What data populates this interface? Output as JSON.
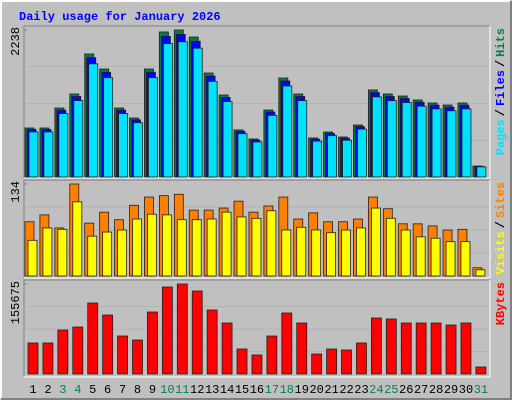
{
  "title": "Daily usage for January 2026",
  "legend_separator": "/",
  "chart_data": [
    {
      "type": "bar",
      "ylim": [
        0,
        2238
      ],
      "yticks": [
        2238
      ],
      "series": [
        {
          "name": "Hits",
          "color": "#008040",
          "values": [
            746,
            746,
            1050,
            1264,
            1873,
            1644,
            1050,
            898,
            1644,
            2208,
            2238,
            2131,
            1583,
            1248,
            716,
            579,
            1020,
            1507,
            1264,
            594,
            685,
            609,
            792,
            1325,
            1264,
            1233,
            1172,
            1127,
            1096,
            1127,
            167
          ]
        },
        {
          "name": "Files",
          "color": "#0000ff",
          "values": [
            724,
            724,
            1019,
            1226,
            1817,
            1595,
            1019,
            871,
            1595,
            2142,
            2171,
            2067,
            1536,
            1211,
            695,
            562,
            989,
            1462,
            1226,
            576,
            664,
            591,
            768,
            1285,
            1226,
            1196,
            1137,
            1093,
            1063,
            1093,
            162
          ]
        },
        {
          "name": "Pages",
          "color": "#00e0ff",
          "values": [
            686,
            686,
            966,
            1163,
            1723,
            1512,
            966,
            826,
            1512,
            2031,
            2059,
            1961,
            1456,
            1148,
            659,
            533,
            938,
            1386,
            1163,
            546,
            630,
            560,
            729,
            1219,
            1163,
            1134,
            1078,
            1037,
            1008,
            1037,
            154
          ]
        }
      ]
    },
    {
      "type": "bar",
      "ylim": [
        0,
        134
      ],
      "yticks": [
        134
      ],
      "series": [
        {
          "name": "Sites",
          "color": "#ff8000",
          "values": [
            79,
            89,
            70,
            134,
            77,
            93,
            82,
            103,
            115,
            117,
            119,
            96,
            96,
            99,
            109,
            93,
            102,
            115,
            83,
            92,
            79,
            79,
            83,
            115,
            98,
            76,
            76,
            73,
            67,
            68,
            12
          ]
        },
        {
          "name": "Visits",
          "color": "#ffff00",
          "values": [
            52,
            70,
            68,
            108,
            58,
            64,
            67,
            83,
            90,
            89,
            82,
            82,
            83,
            93,
            86,
            84,
            95,
            67,
            71,
            67,
            63,
            67,
            70,
            99,
            84,
            67,
            57,
            55,
            50,
            50,
            9
          ]
        }
      ]
    },
    {
      "type": "bar",
      "ylim": [
        0,
        155675
      ],
      "yticks": [
        155675
      ],
      "categories": [
        "1",
        "2",
        "3",
        "4",
        "5",
        "6",
        "7",
        "8",
        "9",
        "10",
        "11",
        "12",
        "13",
        "14",
        "15",
        "16",
        "17",
        "18",
        "19",
        "20",
        "21",
        "22",
        "23",
        "24",
        "25",
        "26",
        "27",
        "28",
        "29",
        "30",
        "31"
      ],
      "label_colors": [
        "#000000",
        "#000000",
        "#00805c",
        "#00805c",
        "#000000",
        "#000000",
        "#000000",
        "#000000",
        "#000000",
        "#00805c",
        "#00805c",
        "#000000",
        "#000000",
        "#000000",
        "#000000",
        "#000000",
        "#00805c",
        "#00805c",
        "#000000",
        "#000000",
        "#000000",
        "#000000",
        "#000000",
        "#00805c",
        "#00805c",
        "#000000",
        "#000000",
        "#000000",
        "#000000",
        "#000000",
        "#00805c"
      ],
      "series": [
        {
          "name": "KBytes",
          "color": "#ff0000",
          "values": [
            53621,
            53621,
            76108,
            81297,
            122810,
            102054,
            65730,
            58811,
            107243,
            150486,
            155675,
            143567,
            110702,
            88216,
            43243,
            32865,
            65730,
            105513,
            88216,
            34594,
            43243,
            41513,
            53621,
            96864,
            95135,
            88216,
            88216,
            88216,
            84756,
            88216,
            12108
          ]
        }
      ]
    }
  ]
}
